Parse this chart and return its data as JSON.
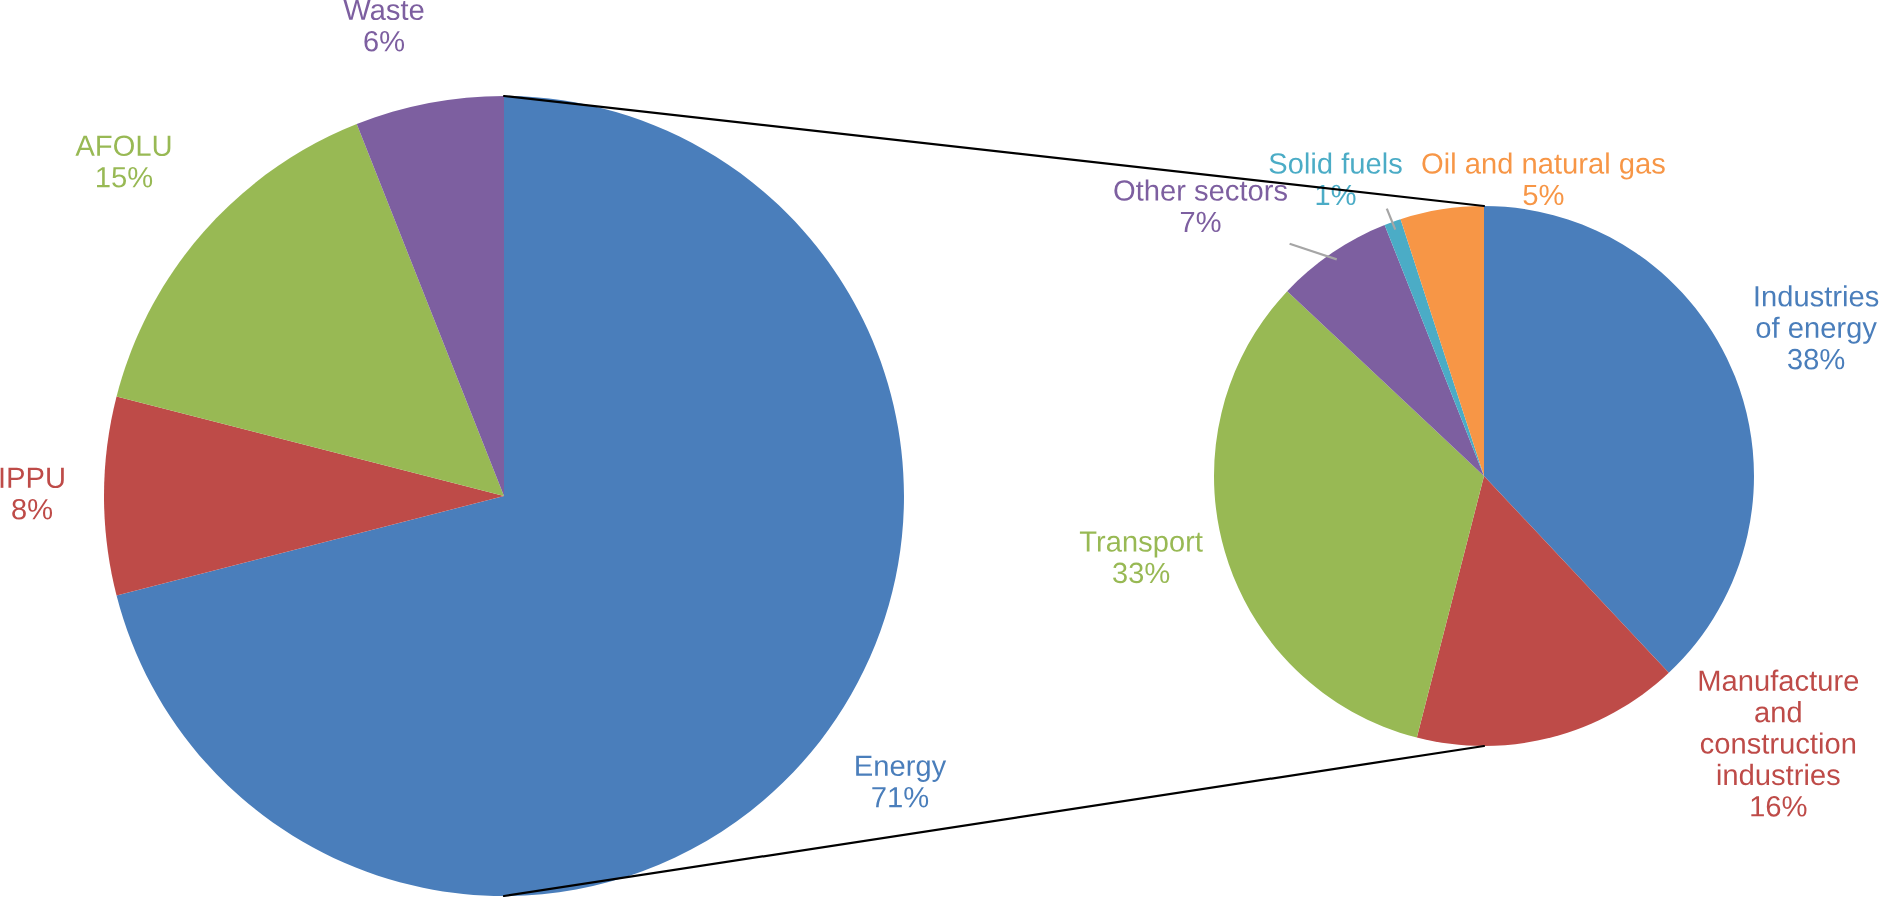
{
  "chart_data": [
    {
      "type": "pie",
      "categories": [
        "Energy",
        "IPPU",
        "AFOLU",
        "Waste"
      ],
      "values": [
        71,
        8,
        15,
        6
      ],
      "value_labels": [
        "71%",
        "8%",
        "15%",
        "6%"
      ],
      "colors": [
        "#4a7ebb",
        "#be4b48",
        "#98b954",
        "#7d5fa0"
      ]
    },
    {
      "type": "pie",
      "categories": [
        "Industries\nof energy",
        "Manufacture\nand\nconstruction\nindustries",
        "Transport",
        "Other sectors",
        "Solid fuels",
        "Oil and natural gas"
      ],
      "values": [
        38,
        16,
        33,
        7,
        1,
        5
      ],
      "value_labels": [
        "38%",
        "16%",
        "33%",
        "7%",
        "1%",
        "5%"
      ],
      "colors": [
        "#4a7ebb",
        "#be4b48",
        "#98b954",
        "#7d5fa0",
        "#4bacc6",
        "#f79646"
      ]
    }
  ]
}
